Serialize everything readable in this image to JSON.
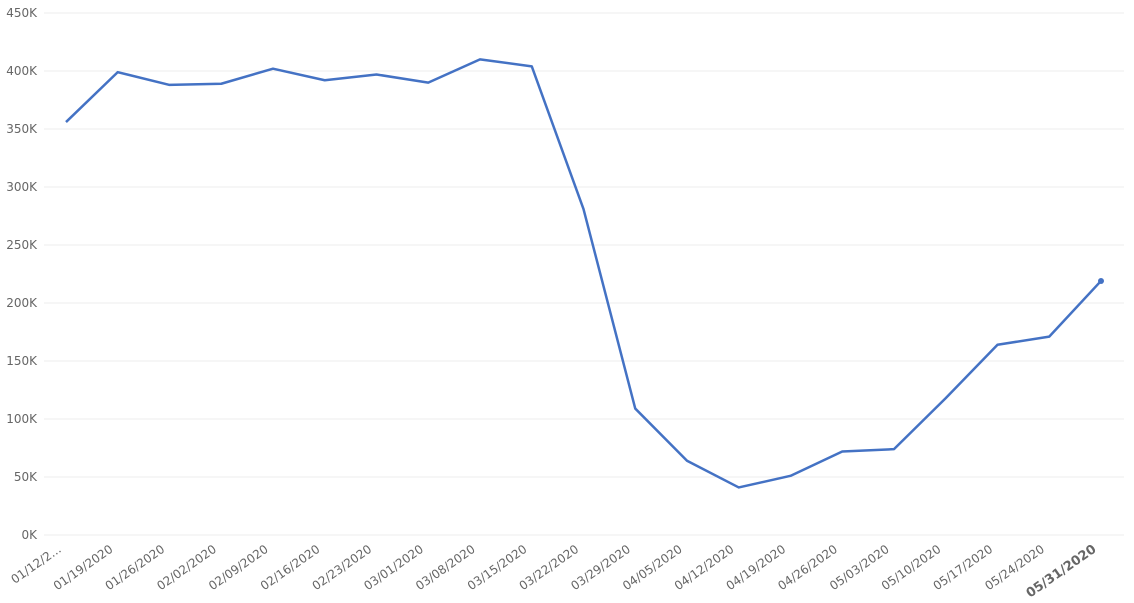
{
  "chart_data": {
    "type": "line",
    "categories": [
      "01/12/2...",
      "01/19/2020",
      "01/26/2020",
      "02/02/2020",
      "02/09/2020",
      "02/16/2020",
      "02/23/2020",
      "03/01/2020",
      "03/08/2020",
      "03/15/2020",
      "03/22/2020",
      "03/29/2020",
      "04/05/2020",
      "04/12/2020",
      "04/19/2020",
      "04/26/2020",
      "05/03/2020",
      "05/10/2020",
      "05/17/2020",
      "05/24/2020",
      "05/31/2020"
    ],
    "values": [
      356000,
      399000,
      388000,
      389000,
      402000,
      392000,
      397000,
      390000,
      410000,
      404000,
      281000,
      109000,
      64000,
      41000,
      51000,
      72000,
      74000,
      118000,
      164000,
      171000,
      219000
    ],
    "color": "#4472c4",
    "ylim": [
      0,
      450000
    ],
    "yticks": [
      {
        "value": 0,
        "label": "0K"
      },
      {
        "value": 50000,
        "label": "50K"
      },
      {
        "value": 100000,
        "label": "100K"
      },
      {
        "value": 150000,
        "label": "150K"
      },
      {
        "value": 200000,
        "label": "200K"
      },
      {
        "value": 250000,
        "label": "250K"
      },
      {
        "value": 300000,
        "label": "300K"
      },
      {
        "value": 350000,
        "label": "350K"
      },
      {
        "value": 400000,
        "label": "400K"
      },
      {
        "value": 450000,
        "label": "450K"
      }
    ],
    "grid": true
  }
}
